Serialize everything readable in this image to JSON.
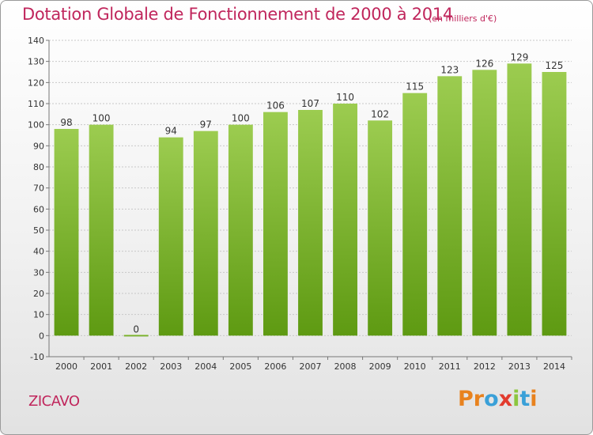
{
  "header": {
    "title": "Dotation Globale de Fonctionnement de 2000 à 2014",
    "unit": "(en milliers d'€)"
  },
  "footer": {
    "commune": "ZICAVO",
    "logo_text": "Proxiti"
  },
  "colors": {
    "title": "#c0265c",
    "bar_top": "#9ccc50",
    "bar_bottom": "#5e9a12",
    "logo": [
      "#e8821e",
      "#e8821e",
      "#3aa0d8",
      "#e23b2e",
      "#8cc63f",
      "#3aa0d8",
      "#e8821e"
    ]
  },
  "chart_data": {
    "type": "bar",
    "categories": [
      "2000",
      "2001",
      "2002",
      "2003",
      "2004",
      "2005",
      "2006",
      "2007",
      "2008",
      "2009",
      "2010",
      "2011",
      "2012",
      "2013",
      "2014"
    ],
    "values": [
      98,
      100,
      0,
      94,
      97,
      100,
      106,
      107,
      110,
      102,
      115,
      123,
      126,
      129,
      125
    ],
    "title": "Dotation Globale de Fonctionnement de 2000 à 2014",
    "subtitle": "(en milliers d'€)",
    "xlabel": "",
    "ylabel": "",
    "ylim": [
      -10,
      140
    ],
    "yticks": [
      -10,
      0,
      10,
      20,
      30,
      40,
      50,
      60,
      70,
      80,
      90,
      100,
      110,
      120,
      130,
      140
    ],
    "grid": "horizontal",
    "data_labels": true
  }
}
